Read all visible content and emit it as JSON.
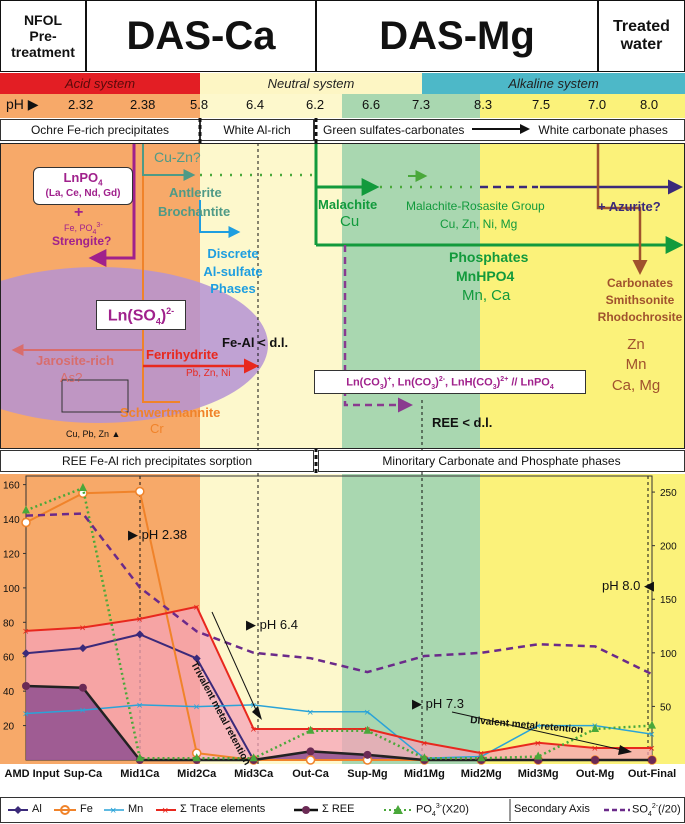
{
  "header": {
    "nfol": [
      "NFOL",
      "Pre-",
      "treatment"
    ],
    "das_ca": "DAS-Ca",
    "das_mg": "DAS-Mg",
    "treated": [
      "Treated",
      "water"
    ]
  },
  "systems": {
    "acid": "Acid system",
    "neutral": "Neutral system",
    "alkaline": "Alkaline system",
    "colors": {
      "acid": "#e31e24",
      "neutral": "#fdf6c4",
      "alkaline": "#4db8c8"
    }
  },
  "ph_row": {
    "label": "pH",
    "values": [
      "2.32",
      "2.38",
      "5.8",
      "6.4",
      "6.2",
      "6.6",
      "7.3",
      "8.3",
      "7.5",
      "7.0",
      "8.0"
    ]
  },
  "phase_boxes": {
    "ochre": "Ochre Fe-rich precipitates",
    "white_al": "White Al-rich",
    "green": "Green sulfates-carbonates",
    "white_carb": "White carbonate phases"
  },
  "diagram": {
    "lnpo4": {
      "title": "LnPO",
      "sub": "4",
      "elements": "(La, Ce, Nd, Gd)"
    },
    "plus": "+",
    "fe_po": "Fe, PO",
    "fe_po_sup": "3-",
    "fe_po_sub": "4",
    "strengite": "Strengite?",
    "cu_zn": "Cu-Zn?",
    "antlerite": "Antlerite",
    "brochantite": "Brochantite",
    "discrete": [
      "Discrete",
      "Al-sulfate",
      "Phases"
    ],
    "ln_so4": "Ln(SO",
    "ln_so4_sub": "4",
    "ln_so4_end": ")",
    "ln_so4_sup": "2-",
    "fe_al_dl": "Fe-Al < d.l.",
    "jarosite": "Jarosite-rich",
    "as": "As?",
    "ferrihydrite": "Ferrihydrite",
    "pb_zn_ni": "Pb, Zn, Ni",
    "schwertmannite": "Schwertmannite",
    "cr": "Cr",
    "cu_pb_zn": "Cu, Pb, Zn",
    "malachite": "Malachite",
    "cu": "Cu",
    "mal_ros": "Malachite-Rosasite Group",
    "cu_zn_ni_mg": "Cu, Zn, Ni, Mg",
    "azurite": "+ Azurite?",
    "phosphates": "Phosphates",
    "mnhpo4": "MnHPO4",
    "mn_ca": "Mn, Ca",
    "carbonates": [
      "Carbonates",
      "Smithsonite",
      "Rhodochrosite"
    ],
    "zn_mn_camg": [
      "Zn",
      "Mn",
      "Ca, Mg"
    ],
    "ln_co3_box": {
      "a": "Ln(CO",
      "a_sub": "3",
      "a_end": ")",
      "a_sup": "+",
      "b": ", Ln(CO",
      "b_sub": "3",
      "b_end": ")",
      "b_sup": "2-",
      "c": ", LnH(CO",
      "c_sub": "3",
      "c_end": ")",
      "c_sup": "2+",
      "d": " // LnPO",
      "d_sub": "4"
    },
    "ree_dl": "REE < d.l."
  },
  "section2": {
    "left": "REE Fe-Al rich precipitates sorption",
    "right": "Minoritary Carbonate and Phosphate phases"
  },
  "chart_data": {
    "type": "line",
    "categories": [
      "AMD Input",
      "Sup-Ca",
      "Mid1Ca",
      "Mid2Ca",
      "Mid3Ca",
      "Out-Ca",
      "Sup-Mg",
      "Mid1Mg",
      "Mid2Mg",
      "Mid3Mg",
      "Out-Mg",
      "Out-Final"
    ],
    "ylim": [
      0,
      165
    ],
    "y2lim": [
      0,
      265
    ],
    "yticks": [
      20,
      40,
      60,
      80,
      100,
      120,
      140,
      160
    ],
    "y2ticks": [
      50,
      100,
      150,
      200,
      250
    ],
    "series": [
      {
        "name": "Al",
        "axis": "primary",
        "color": "#3b2a7a",
        "values": [
          62,
          65,
          73,
          59,
          0,
          0,
          0,
          0,
          0,
          0,
          0,
          0
        ]
      },
      {
        "name": "Fe",
        "axis": "primary",
        "color": "#f0832a",
        "values": [
          138,
          155,
          156,
          4,
          0,
          0,
          0,
          0,
          0,
          0,
          0,
          0
        ]
      },
      {
        "name": "Mn",
        "axis": "primary",
        "color": "#2aa3d8",
        "values": [
          27,
          29,
          32,
          31,
          32,
          28,
          28,
          1,
          2,
          20,
          20,
          15
        ]
      },
      {
        "name": "Σ Trace elements",
        "axis": "primary",
        "color": "#e8281e",
        "values": [
          75,
          77,
          82,
          89,
          18,
          18,
          18,
          10,
          4,
          10,
          7,
          7
        ]
      },
      {
        "name": "Σ REE",
        "axis": "primary",
        "color": "#6b2a55",
        "values": [
          43,
          42,
          0,
          0,
          0,
          5,
          3,
          0,
          0,
          0,
          0,
          0
        ]
      },
      {
        "name": "PO4 (X20)",
        "axis": "primary",
        "color": "#4aa83a",
        "values": [
          145,
          158,
          1,
          1,
          1,
          17,
          17,
          1,
          1,
          2,
          18,
          20
        ]
      },
      {
        "name": "SO4 (/20)",
        "axis": "secondary",
        "color": "#6b2a8a",
        "values": [
          228,
          230,
          161,
          120,
          100,
          95,
          82,
          97,
          100,
          108,
          106,
          80
        ]
      }
    ],
    "annotations": {
      "ph238": "pH 2.38",
      "ph64": "pH 6.4",
      "ph73": "pH 7.3",
      "ph80": "pH 8.0",
      "trivalent": "Trivalent metal retention",
      "divalent": "Divalent metal retention"
    }
  },
  "legend": {
    "al": "Al",
    "fe": "Fe",
    "mn": "Mn",
    "trace": "Σ Trace elements",
    "ree": "Σ REE",
    "po4": "PO",
    "po4_sub": "4",
    "po4_sup": "3-",
    "po4_end": "(X20)",
    "secondary": "Secondary Axis",
    "so4": "SO",
    "so4_sub": "4",
    "so4_sup": "2-",
    "so4_end": "(/20)"
  }
}
